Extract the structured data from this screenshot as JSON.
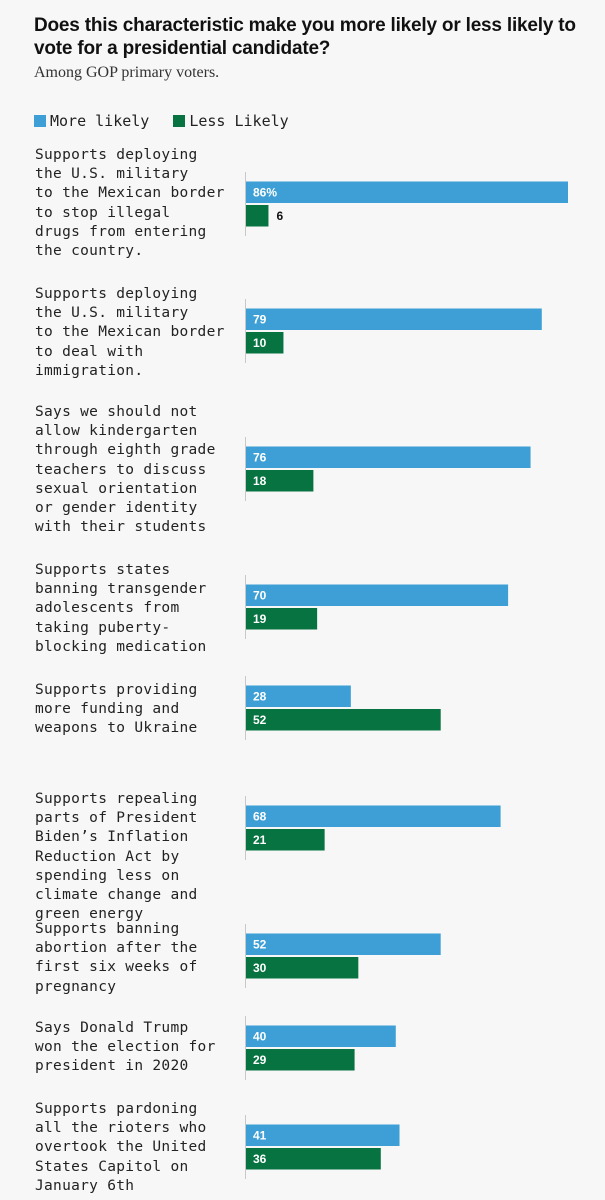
{
  "header": {
    "title": "Does this characteristic make you more likely or less likely to vote for a presidential candidate?",
    "subtitle": "Among GOP primary voters."
  },
  "legend": {
    "more": "More likely",
    "less": "Less Likely"
  },
  "colors": {
    "more": "#3d9fd6",
    "less": "#077340"
  },
  "chart_data": {
    "type": "bar",
    "orientation": "horizontal",
    "title": "Does this characteristic make you more likely or less likely to vote for a presidential candidate?",
    "subtitle": "Among GOP primary voters.",
    "xlim": [
      0,
      86
    ],
    "grid": false,
    "legend_position": "top-left",
    "categories": [
      "Supports deploying the U.S. military to the Mexican border to stop illegal drugs from entering the country.",
      "Supports deploying the U.S. military to the Mexican border to deal with immigration.",
      "Says we should not allow kindergarten through eighth grade teachers to discuss sexual orientation or gender identity with their students",
      "Supports states banning transgender adolescents from taking puberty-blocking medication",
      "Supports providing more funding and weapons to Ukraine",
      "Supports repealing parts of President Biden’s Inflation Reduction Act by spending less on climate change and green energy",
      "Supports banning abortion after the first six weeks of pregnancy",
      "Says Donald Trump won the election for president in 2020",
      "Supports pardoning all the rioters who overtook the United States Capitol on January 6th"
    ],
    "category_lines": [
      "Supports deploying\nthe U.S. military\nto the Mexican border\nto stop illegal\ndrugs from entering\nthe country.",
      "Supports deploying\nthe U.S. military\nto the Mexican border\nto deal with\nimmigration.",
      "Says we should not\nallow kindergarten\nthrough eighth grade\nteachers to discuss\nsexual orientation\nor gender identity\nwith their students",
      "Supports states\nbanning transgender\nadolescents from\ntaking puberty-\nblocking medication",
      "Supports providing\nmore funding and\nweapons to Ukraine",
      "Supports repealing\nparts of President\nBiden’s Inflation\nReduction Act by\nspending less on\nclimate change and\ngreen energy",
      "Supports banning\nabortion after the\nfirst six weeks of\npregnancy",
      "Says Donald Trump\nwon the election for\npresident in 2020",
      "Supports pardoning\nall the rioters who\novertook the United\nStates Capitol on\nJanuary 6th"
    ],
    "series": [
      {
        "name": "More likely",
        "values": [
          86,
          79,
          76,
          70,
          28,
          68,
          52,
          40,
          41
        ],
        "labels": [
          "86%",
          "79",
          "76",
          "70",
          "28",
          "68",
          "52",
          "40",
          "41"
        ]
      },
      {
        "name": "Less Likely",
        "values": [
          6,
          10,
          18,
          19,
          52,
          21,
          30,
          29,
          36
        ],
        "labels": [
          "6",
          "10",
          "18",
          "19",
          "52",
          "21",
          "30",
          "29",
          "36"
        ]
      }
    ]
  }
}
